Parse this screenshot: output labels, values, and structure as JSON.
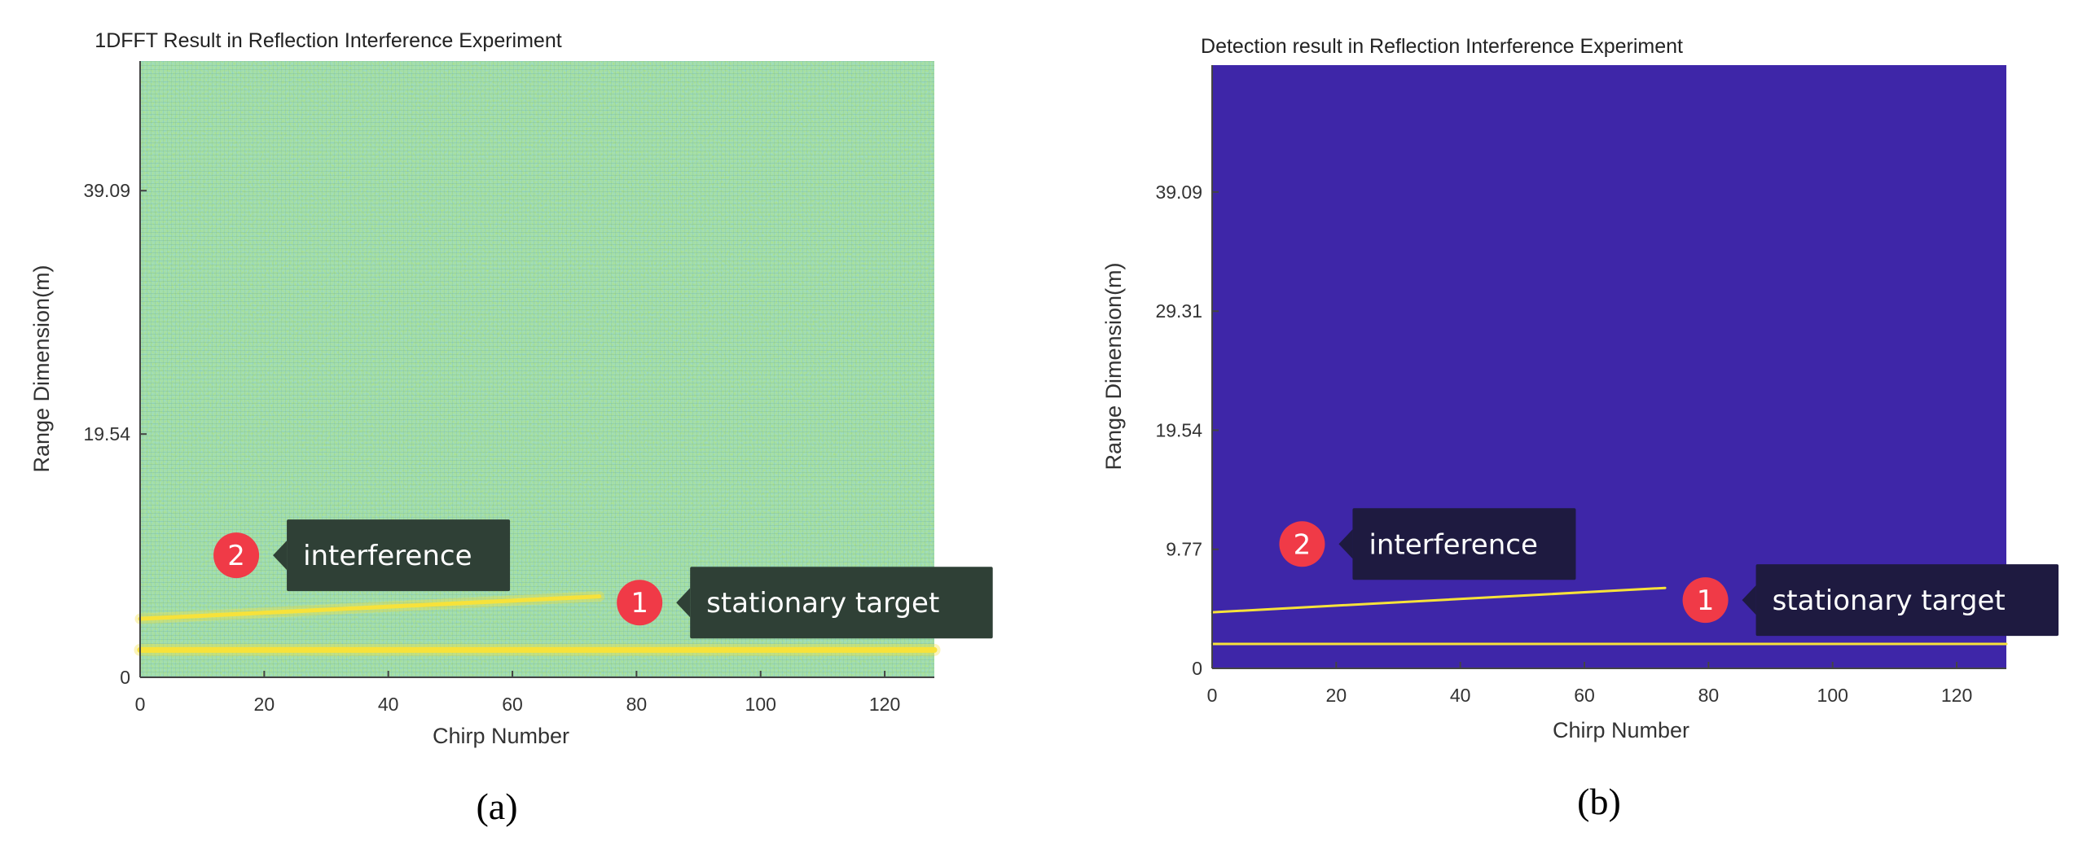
{
  "chart_data": [
    {
      "id": "a",
      "type": "heatmap",
      "title": "1DFFT Result in Reflection Interference Experiment",
      "xlabel": "Chirp Number",
      "ylabel": "Range Dimension(m)",
      "xlim": [
        0,
        128
      ],
      "ylim": [
        0,
        49.5
      ],
      "xticks": [
        0,
        20,
        40,
        60,
        80,
        100,
        120
      ],
      "yticks": [
        0,
        19.54,
        39.09
      ],
      "ytick_labels": [
        "0",
        "19.54",
        "39.09"
      ],
      "background": "noise",
      "traces": [
        {
          "name": "stationary",
          "x": [
            0,
            128
          ],
          "y": [
            2.2,
            2.2
          ]
        },
        {
          "name": "interference",
          "x": [
            0,
            74
          ],
          "y": [
            4.7,
            6.5
          ]
        }
      ],
      "annotations": [
        {
          "num": "2",
          "text": "interference",
          "x": 15.5,
          "y": 9.8
        },
        {
          "num": "1",
          "text": "stationary target",
          "x": 80.5,
          "y": 6.0
        }
      ],
      "caption": "(a)"
    },
    {
      "id": "b",
      "type": "heatmap",
      "title": "Detection result in Reflection Interference Experiment",
      "xlabel": "Chirp Number",
      "ylabel": "Range Dimension(m)",
      "xlim": [
        0,
        128
      ],
      "ylim": [
        0,
        49.5
      ],
      "xticks": [
        0,
        20,
        40,
        60,
        80,
        100,
        120
      ],
      "yticks": [
        0,
        9.77,
        19.54,
        29.31,
        39.09
      ],
      "ytick_labels": [
        "0",
        "9.77",
        "19.54",
        "29.31",
        "39.09"
      ],
      "background": "solid",
      "traces": [
        {
          "name": "stationary",
          "x": [
            0,
            128
          ],
          "y": [
            2.0,
            2.0
          ]
        },
        {
          "name": "interference",
          "x": [
            0,
            73
          ],
          "y": [
            4.6,
            6.6
          ]
        }
      ],
      "annotations": [
        {
          "num": "2",
          "text": "interference",
          "x": 14.5,
          "y": 10.2
        },
        {
          "num": "1",
          "text": "stationary target",
          "x": 79.5,
          "y": 5.6
        }
      ],
      "caption": "(b)"
    }
  ],
  "colors": {
    "noise_base": "#6cc49c",
    "detect_bg": "#3e26a8",
    "trace": "#f7e23a",
    "marker": "#f03a47",
    "box_a": "#2f4036",
    "box_b": "#1e1a40"
  }
}
